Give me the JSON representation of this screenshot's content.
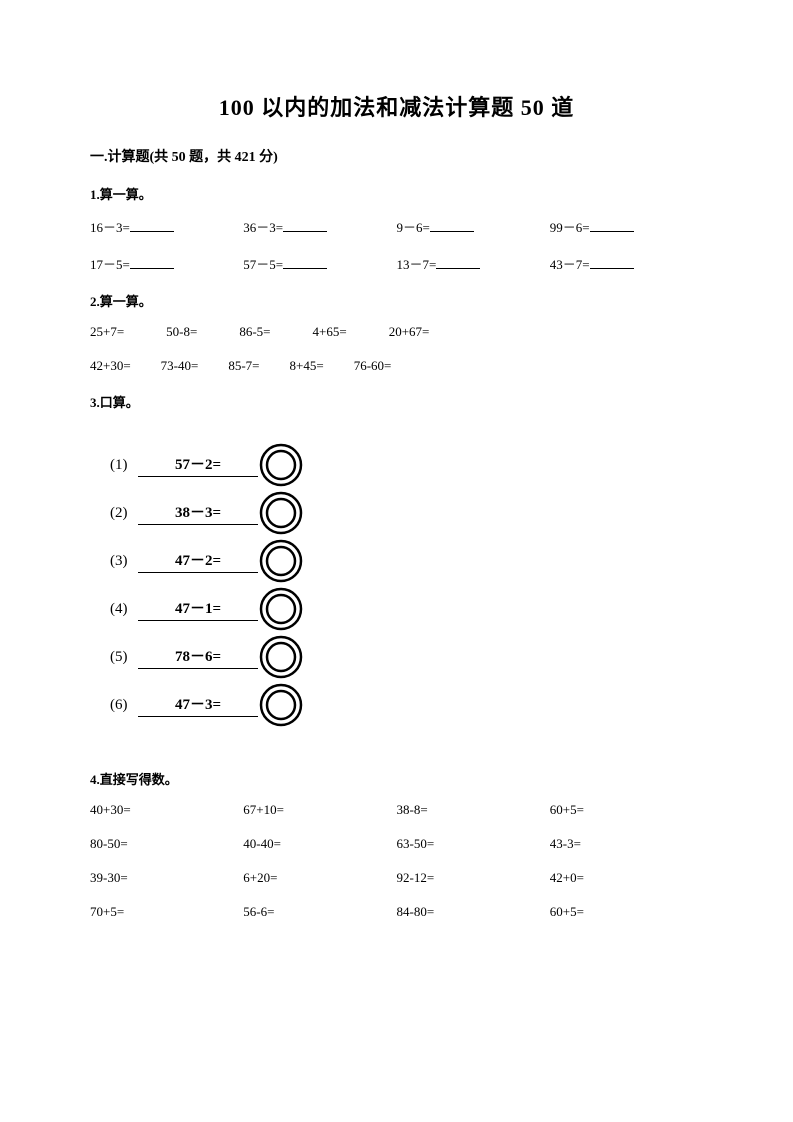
{
  "title": "100 以内的加法和减法计算题 50 道",
  "section": "一.计算题(共 50 题，共 421 分)",
  "q1": {
    "heading": "1.算一算。",
    "row1": [
      "16－3=",
      "36－3=",
      "9－6=",
      "99－6="
    ],
    "row2": [
      "17－5=",
      "57－5=",
      "13－7=",
      "43－7="
    ]
  },
  "q2": {
    "heading": "2.算一算。",
    "row1": [
      "25+7=",
      "50-8=",
      "86-5=",
      "4+65=",
      "20+67="
    ],
    "row2": [
      "42+30=",
      "73-40=",
      "85-7=",
      "8+45=",
      "76-60="
    ]
  },
  "q3": {
    "heading": "3.口算。",
    "items": [
      {
        "num": "(1)",
        "expr": "57－2="
      },
      {
        "num": "(2)",
        "expr": "38－3="
      },
      {
        "num": "(3)",
        "expr": "47－2="
      },
      {
        "num": "(4)",
        "expr": "47－1="
      },
      {
        "num": "(5)",
        "expr": "78－6="
      },
      {
        "num": "(6)",
        "expr": "47－3="
      }
    ]
  },
  "q4": {
    "heading": "4.直接写得数。",
    "rows": [
      [
        "40+30=",
        "67+10=",
        "38-8=",
        "60+5="
      ],
      [
        "80-50=",
        "40-40=",
        "63-50=",
        "43-3="
      ],
      [
        "39-30=",
        "6+20=",
        "92-12=",
        "42+0="
      ],
      [
        "70+5=",
        "56-6=",
        "84-80=",
        "60+5="
      ]
    ]
  },
  "colors": {
    "text": "#000000",
    "bg": "#ffffff",
    "line": "#000000"
  }
}
